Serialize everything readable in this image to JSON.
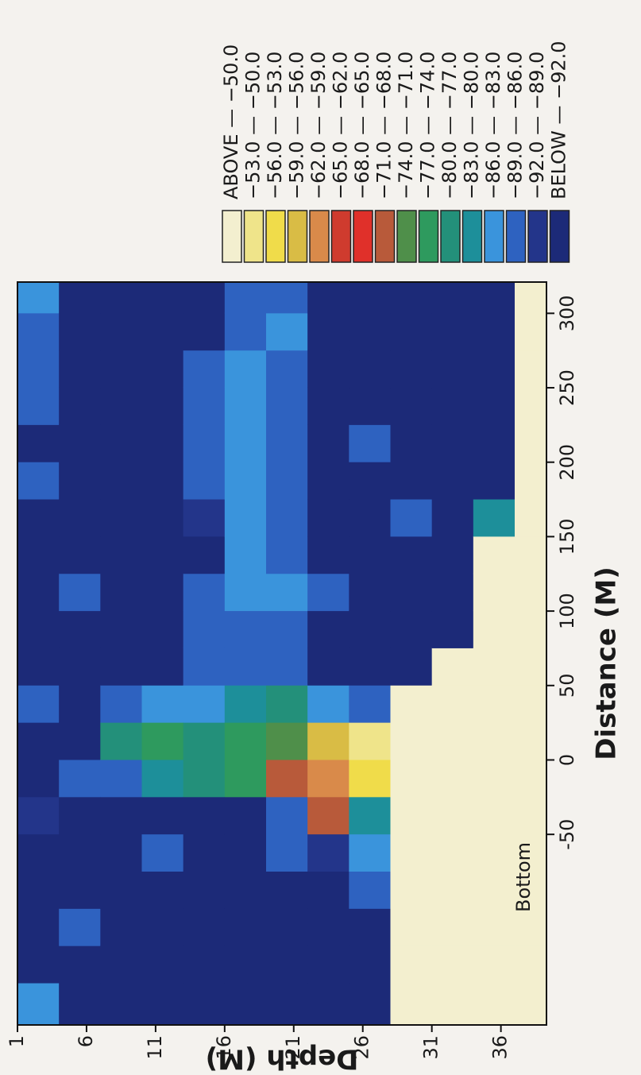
{
  "chart_data": {
    "type": "heatmap",
    "xlabel": "Distance (M)",
    "ylabel": "Depth (M)",
    "annotations": [
      "Bottom"
    ],
    "xlim": [
      -178,
      321
    ],
    "xticks": [
      -50,
      0,
      50,
      100,
      150,
      200,
      250,
      300
    ],
    "ylim": [
      1,
      39.3
    ],
    "yticks": [
      1,
      6,
      11,
      16,
      21,
      26,
      31,
      36
    ],
    "y_inverted": true,
    "x": [
      -178,
      -150,
      -125,
      -100,
      -75,
      -50,
      -25,
      0,
      25,
      50,
      75,
      100,
      125,
      150,
      175,
      200,
      225,
      250,
      275,
      300,
      321
    ],
    "y": [
      1,
      4,
      7,
      10,
      13,
      16,
      19,
      22,
      25,
      28,
      31,
      34,
      37,
      39.3
    ],
    "z": [
      [
        -84,
        -93,
        -93,
        -93,
        -93,
        -90,
        -93,
        -93,
        -88,
        -93,
        -93,
        -93,
        -93,
        -93,
        -88,
        -93,
        -87,
        -88,
        -86,
        -85
      ],
      [
        -93,
        -93,
        -88,
        -93,
        -93,
        -93,
        -86,
        -93,
        -93,
        -93,
        -93,
        -86,
        -93,
        -93,
        -93,
        -93,
        -93,
        -93,
        -93,
        -93
      ],
      [
        -93,
        -93,
        -93,
        -93,
        -93,
        -93,
        -88,
        -78,
        -88,
        -93,
        -93,
        -93,
        -93,
        -93,
        -93,
        -93,
        -93,
        -93,
        -93,
        -93
      ],
      [
        -93,
        -93,
        -93,
        -93,
        -88,
        -93,
        -80,
        -76,
        -85,
        -93,
        -93,
        -93,
        -93,
        -93,
        -93,
        -93,
        -93,
        -93,
        -93,
        -93
      ],
      [
        -93,
        -93,
        -93,
        -93,
        -93,
        -93,
        -78,
        -77,
        -84,
        -88,
        -88,
        -88,
        -93,
        -90,
        -88,
        -86,
        -86,
        -88,
        -93,
        -93
      ],
      [
        -93,
        -93,
        -93,
        -93,
        -93,
        -93,
        -76,
        -75,
        -82,
        -86,
        -86,
        -85,
        -85,
        -85,
        -84,
        -84,
        -85,
        -85,
        -86,
        -86
      ],
      [
        -93,
        -93,
        -93,
        -93,
        -88,
        -88,
        -70,
        -73,
        -78,
        -86,
        -86,
        -85,
        -86,
        -86,
        -86,
        -86,
        -86,
        -86,
        -85,
        -86
      ],
      [
        -93,
        -93,
        -93,
        -93,
        -90,
        -70,
        -60,
        -58,
        -83,
        -93,
        -93,
        -88,
        -93,
        -93,
        -93,
        -93,
        -93,
        -93,
        -93,
        -93
      ],
      [
        -93,
        -93,
        -93,
        -88,
        -85,
        -80,
        -55,
        -52,
        -88,
        -93,
        -93,
        -93,
        -93,
        -93,
        -93,
        -88,
        -93,
        -93,
        -93,
        -93
      ],
      [
        -45,
        -45,
        -45,
        -45,
        -45,
        -45,
        -45,
        -45,
        -45,
        -93,
        -93,
        -93,
        -93,
        -88,
        -93,
        -93,
        -93,
        -93,
        -93,
        -93
      ],
      [
        -45,
        -45,
        -45,
        -45,
        -45,
        -45,
        -45,
        -45,
        -45,
        -45,
        -93,
        -93,
        -93,
        -93,
        -93,
        -93,
        -93,
        -93,
        -93,
        -93
      ],
      [
        -45,
        -45,
        -45,
        -45,
        -45,
        -45,
        -45,
        -45,
        -45,
        -45,
        -45,
        -45,
        -45,
        -82,
        -93,
        -93,
        -93,
        -93,
        -93,
        -93
      ],
      [
        -45,
        -45,
        -45,
        -45,
        -45,
        -45,
        -45,
        -45,
        -45,
        -45,
        -45,
        -45,
        -45,
        -45,
        -45,
        -45,
        -45,
        -45,
        -45,
        -45
      ]
    ],
    "levels": [
      -50,
      -53,
      -56,
      -59,
      -62,
      -65,
      -68,
      -71,
      -74,
      -77,
      -80,
      -83,
      -86,
      -89,
      -92
    ],
    "legend": [
      {
        "label": "ABOVE — −50.0",
        "color": "#f3efcf"
      },
      {
        "label": "−53.0 — −50.0",
        "color": "#efe48a"
      },
      {
        "label": "−56.0 — −53.0",
        "color": "#f0dc4a"
      },
      {
        "label": "−59.0 — −56.0",
        "color": "#d9bc45"
      },
      {
        "label": "−62.0 — −59.0",
        "color": "#d98a4a"
      },
      {
        "label": "−65.0 — −62.0",
        "color": "#cf3b2e"
      },
      {
        "label": "−68.0 — −65.0",
        "color": "#e0302a"
      },
      {
        "label": "−71.0 — −68.0",
        "color": "#b85a3a"
      },
      {
        "label": "−74.0 — −71.0",
        "color": "#4f8f4a"
      },
      {
        "label": "−77.0 — −74.0",
        "color": "#2e9a5e"
      },
      {
        "label": "−80.0 — −77.0",
        "color": "#23907a"
      },
      {
        "label": "−83.0 — −80.0",
        "color": "#1d8f9a"
      },
      {
        "label": "−86.0 — −83.0",
        "color": "#3a94dc"
      },
      {
        "label": "−89.0 — −86.0",
        "color": "#2e62c0"
      },
      {
        "label": "−92.0 — −89.0",
        "color": "#23358a"
      },
      {
        "label": "BELOW — −92.0",
        "color": "#1c2a78"
      }
    ]
  }
}
